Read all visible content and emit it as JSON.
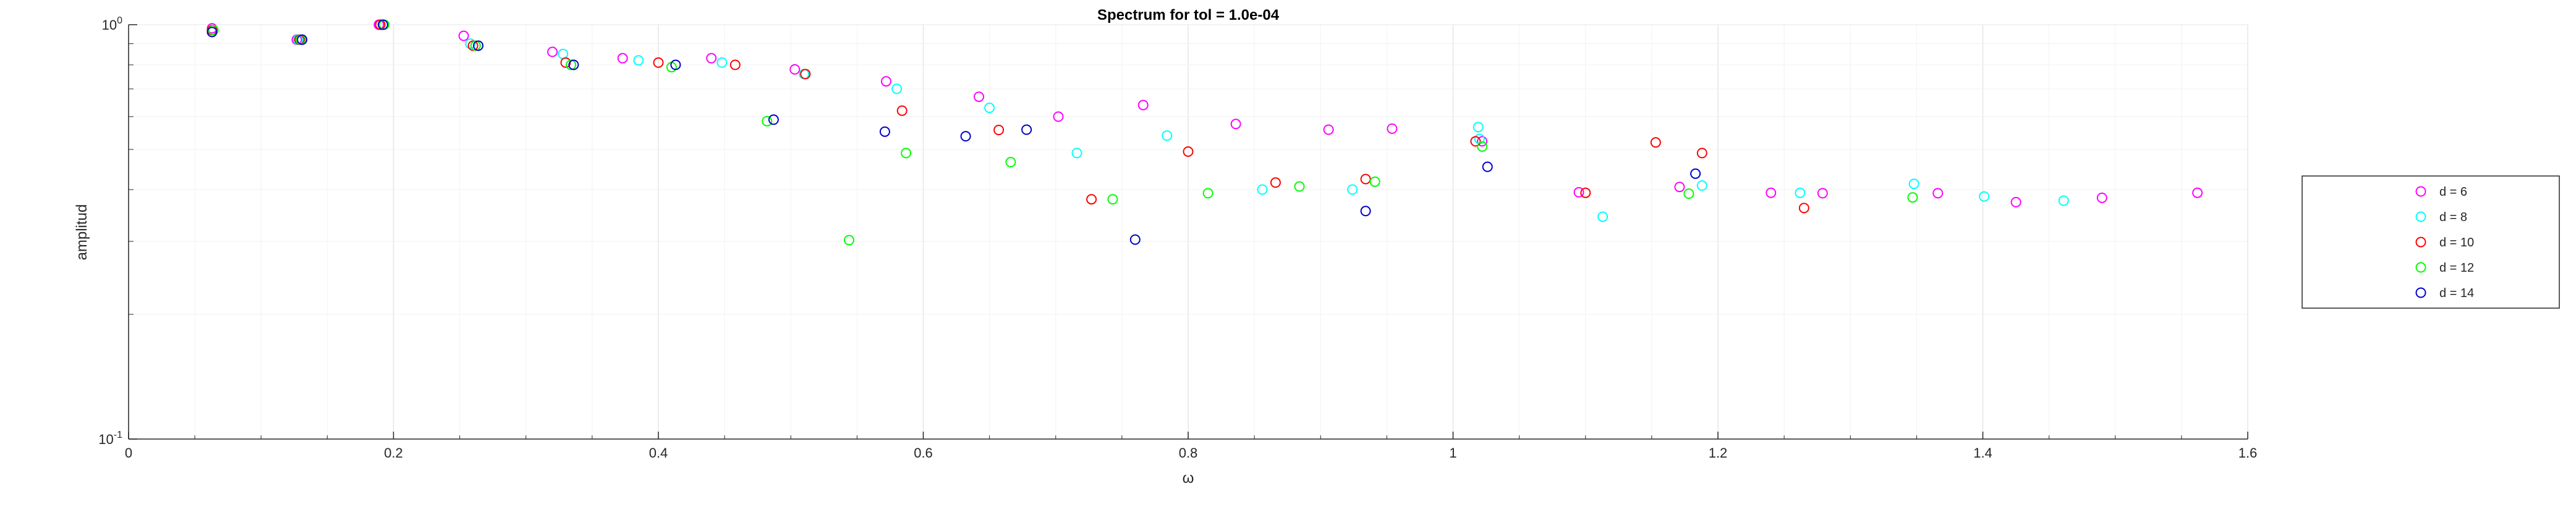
{
  "chart_data": {
    "type": "scatter",
    "title": "Spectrum for tol = 1.0e-04",
    "xlabel": "ω",
    "ylabel": "amplitud",
    "xlim": [
      0,
      1.6
    ],
    "ylim": [
      0.1,
      1
    ],
    "yscale": "log",
    "grid": true,
    "legend_position": "right",
    "x_ticks": [
      "0",
      "0.2",
      "0.4",
      "0.6",
      "0.8",
      "1",
      "1.2",
      "1.4",
      "1.6"
    ],
    "y_ticks": [
      {
        "value": 0.1,
        "base": "10",
        "exp": "-1"
      },
      {
        "value": 1,
        "base": "10",
        "exp": "0"
      }
    ],
    "series": [
      {
        "name": "d = 6",
        "color": "#ff00ff",
        "points": [
          [
            0.063,
            0.98
          ],
          [
            0.127,
            0.92
          ],
          [
            0.189,
            1.0
          ],
          [
            0.253,
            0.94
          ],
          [
            0.32,
            0.86
          ],
          [
            0.373,
            0.83
          ],
          [
            0.44,
            0.83
          ],
          [
            0.503,
            0.78
          ],
          [
            0.572,
            0.73
          ],
          [
            0.642,
            0.67
          ],
          [
            0.702,
            0.6
          ],
          [
            0.766,
            0.64
          ],
          [
            0.836,
            0.576
          ],
          [
            0.906,
            0.558
          ],
          [
            0.954,
            0.561
          ],
          [
            1.022,
            0.523
          ],
          [
            1.095,
            0.394
          ],
          [
            1.171,
            0.406
          ],
          [
            1.24,
            0.393
          ],
          [
            1.279,
            0.392
          ],
          [
            1.366,
            0.392
          ],
          [
            1.425,
            0.373
          ],
          [
            1.49,
            0.382
          ],
          [
            1.562,
            0.393
          ]
        ]
      },
      {
        "name": "d = 8",
        "color": "#00ffff",
        "points": [
          [
            0.064,
            0.97
          ],
          [
            0.128,
            0.92
          ],
          [
            0.192,
            1.0
          ],
          [
            0.258,
            0.9
          ],
          [
            0.328,
            0.85
          ],
          [
            0.385,
            0.82
          ],
          [
            0.448,
            0.81
          ],
          [
            0.51,
            0.76
          ],
          [
            0.58,
            0.7
          ],
          [
            0.65,
            0.63
          ],
          [
            0.716,
            0.49
          ],
          [
            0.784,
            0.54
          ],
          [
            0.856,
            0.4
          ],
          [
            0.924,
            0.4
          ],
          [
            1.019,
            0.566
          ],
          [
            1.02,
            0.53
          ],
          [
            1.113,
            0.344
          ],
          [
            1.188,
            0.409
          ],
          [
            1.262,
            0.393
          ],
          [
            1.348,
            0.413
          ],
          [
            1.401,
            0.385
          ],
          [
            1.461,
            0.376
          ]
        ]
      },
      {
        "name": "d = 10",
        "color": "#ff0000",
        "points": [
          [
            0.063,
            0.97
          ],
          [
            0.129,
            0.92
          ],
          [
            0.19,
            1.0
          ],
          [
            0.26,
            0.89
          ],
          [
            0.33,
            0.81
          ],
          [
            0.4,
            0.81
          ],
          [
            0.458,
            0.8
          ],
          [
            0.511,
            0.76
          ],
          [
            0.584,
            0.62
          ],
          [
            0.657,
            0.557
          ],
          [
            0.727,
            0.379
          ],
          [
            0.8,
            0.494
          ],
          [
            0.866,
            0.416
          ],
          [
            0.934,
            0.424
          ],
          [
            1.017,
            0.523
          ],
          [
            1.1,
            0.393
          ],
          [
            1.153,
            0.52
          ],
          [
            1.188,
            0.49
          ],
          [
            1.265,
            0.361
          ]
        ]
      },
      {
        "name": "d = 12",
        "color": "#00ff00",
        "points": [
          [
            0.064,
            0.97
          ],
          [
            0.13,
            0.92
          ],
          [
            0.193,
            1.0
          ],
          [
            0.262,
            0.89
          ],
          [
            0.334,
            0.8
          ],
          [
            0.41,
            0.79
          ],
          [
            0.482,
            0.585
          ],
          [
            0.544,
            0.302
          ],
          [
            0.587,
            0.49
          ],
          [
            0.666,
            0.466
          ],
          [
            0.743,
            0.379
          ],
          [
            0.815,
            0.392
          ],
          [
            0.884,
            0.407
          ],
          [
            0.941,
            0.418
          ],
          [
            1.022,
            0.508
          ],
          [
            1.178,
            0.391
          ],
          [
            1.347,
            0.383
          ]
        ]
      },
      {
        "name": "d = 14",
        "color": "#0000cc",
        "points": [
          [
            0.063,
            0.96
          ],
          [
            0.131,
            0.92
          ],
          [
            0.192,
            1.0
          ],
          [
            0.264,
            0.89
          ],
          [
            0.336,
            0.8
          ],
          [
            0.413,
            0.8
          ],
          [
            0.487,
            0.59
          ],
          [
            0.571,
            0.552
          ],
          [
            0.632,
            0.538
          ],
          [
            0.678,
            0.558
          ],
          [
            0.76,
            0.303
          ],
          [
            0.934,
            0.355
          ],
          [
            1.026,
            0.454
          ],
          [
            1.183,
            0.437
          ]
        ]
      }
    ]
  }
}
